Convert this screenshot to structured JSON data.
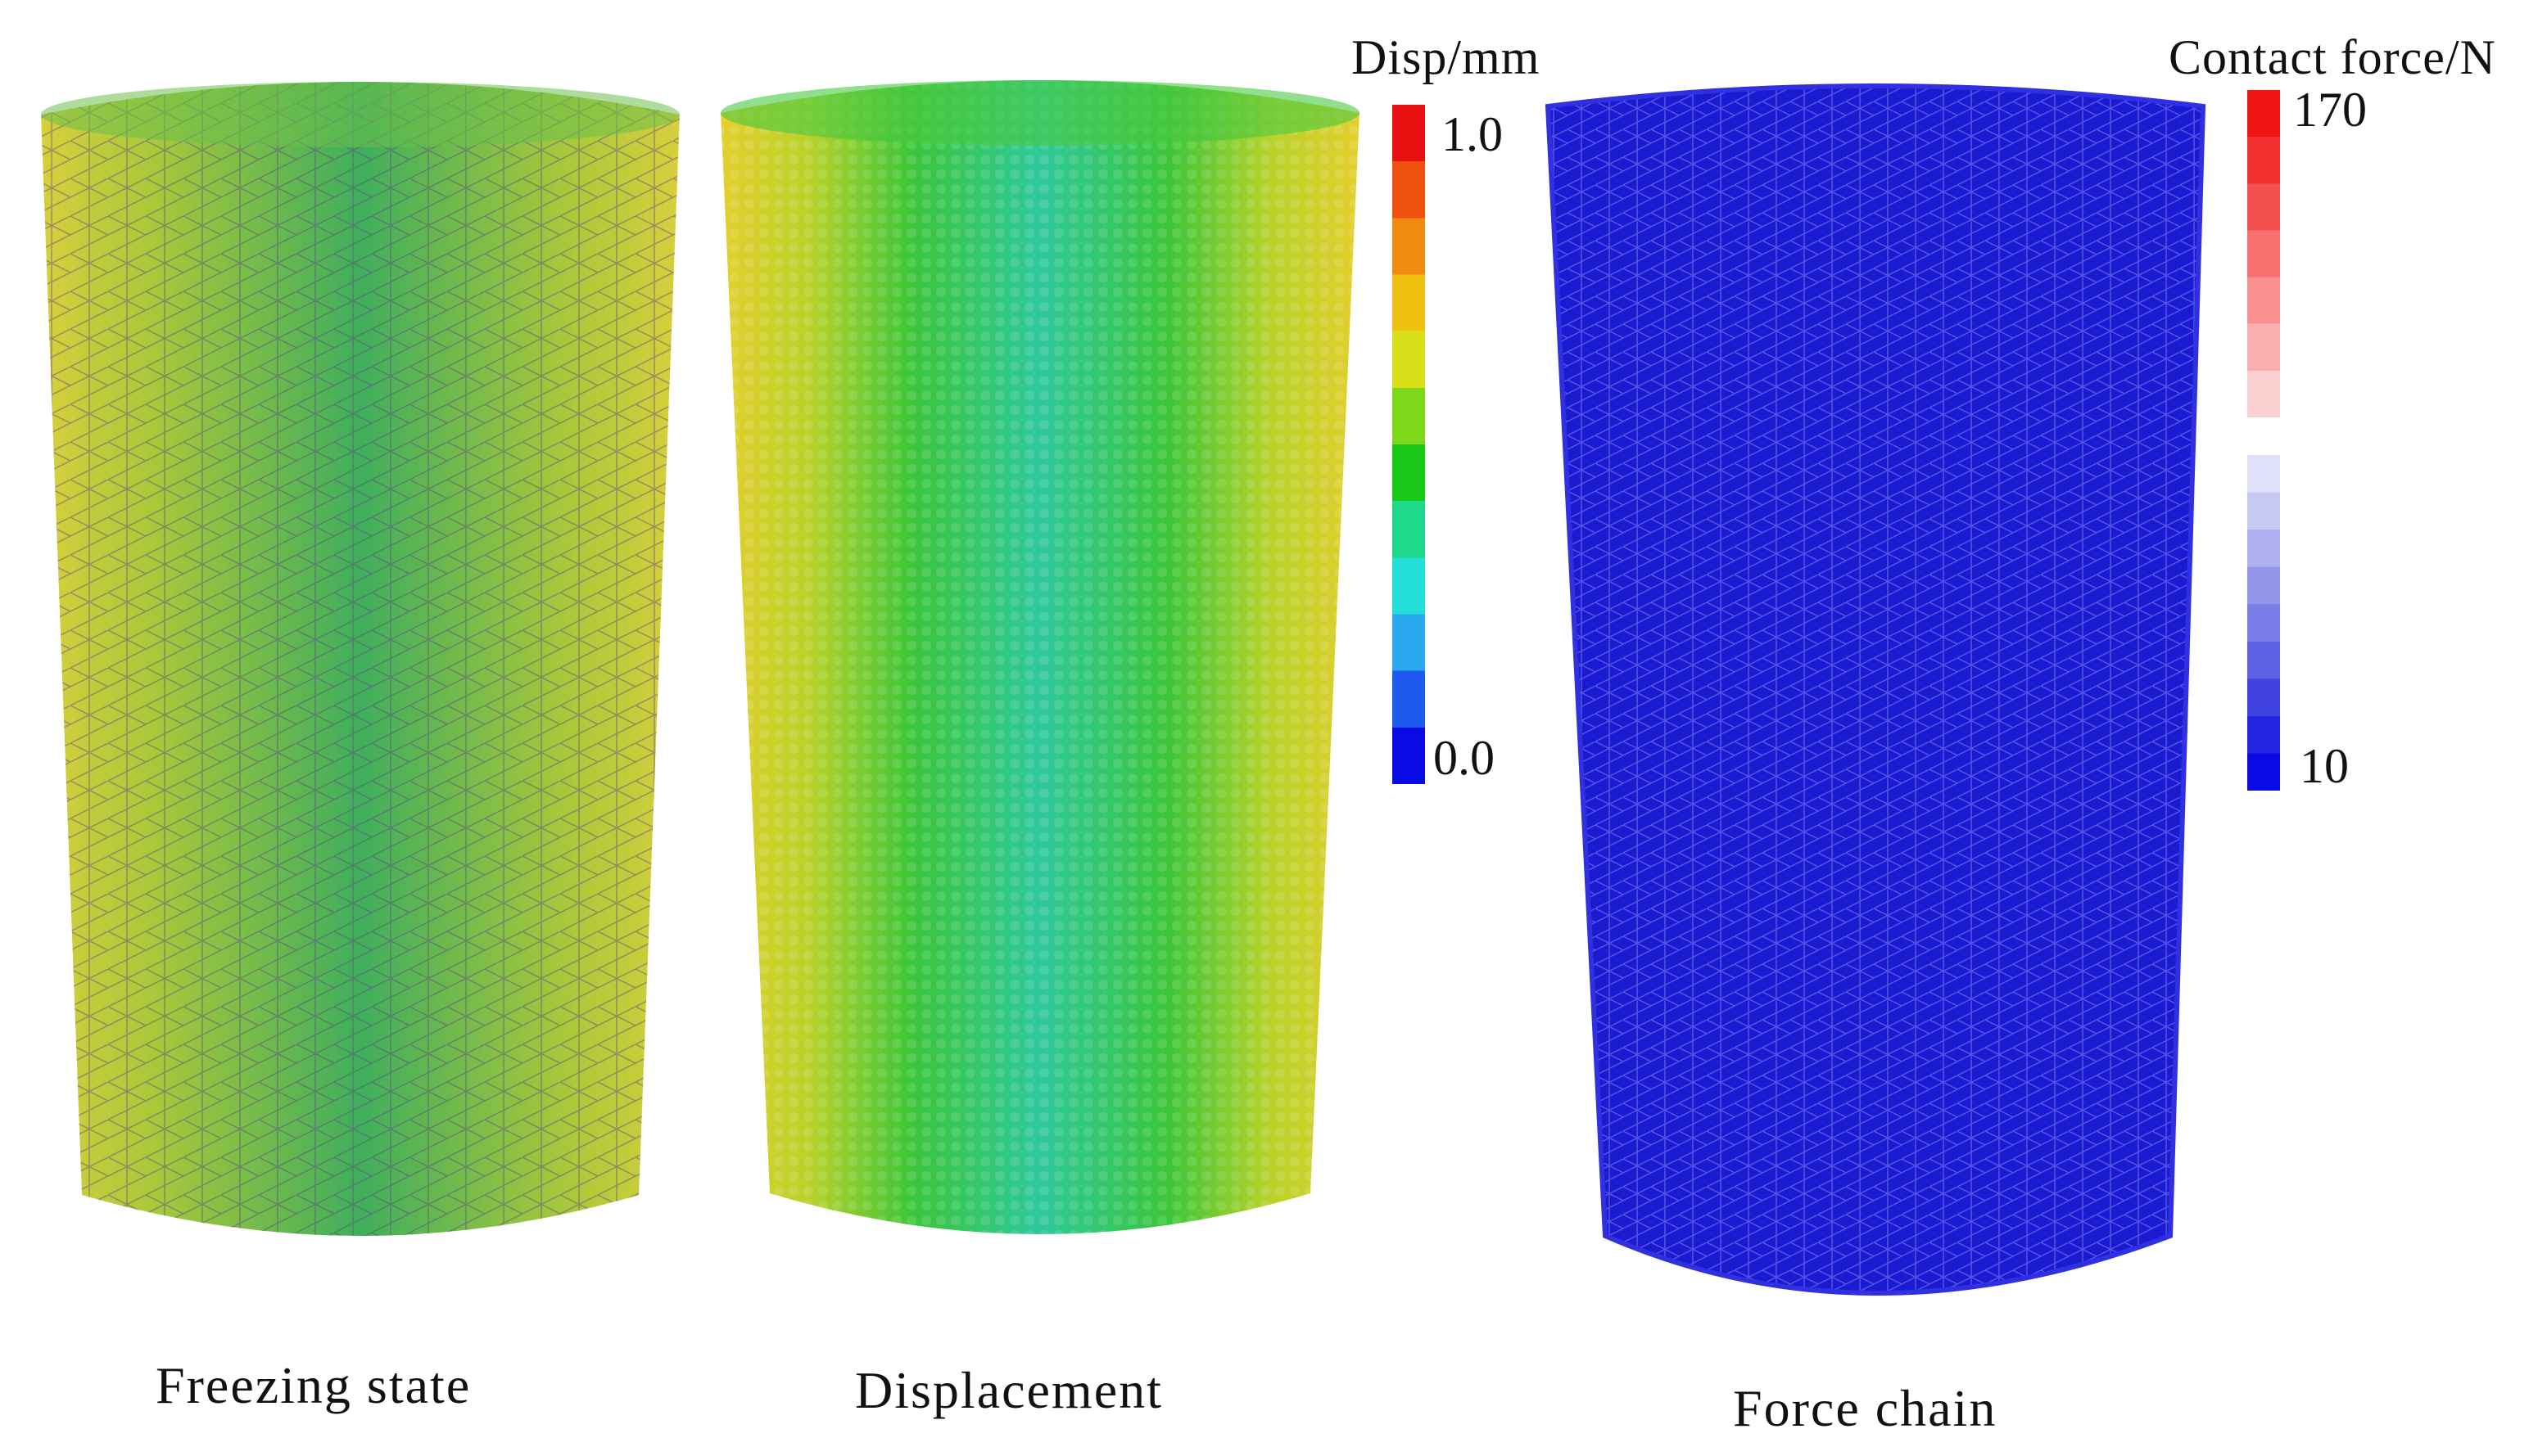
{
  "panels": [
    {
      "id": "freezing",
      "caption": "Freezing state"
    },
    {
      "id": "displacement",
      "caption": "Displacement"
    },
    {
      "id": "force-chain",
      "caption": "Force chain"
    }
  ],
  "disp_legend": {
    "title": "Disp/mm",
    "max_label": "1.0",
    "min_label": "0.0",
    "colors": [
      "#0a0ae6",
      "#1e5af0",
      "#2aa8f0",
      "#22e0d8",
      "#20d88a",
      "#18c818",
      "#7ed81a",
      "#d8e01a",
      "#f0c010",
      "#f08a10",
      "#f0500e",
      "#e81010"
    ]
  },
  "force_legend": {
    "title": "Contact force/N",
    "max_label": "170",
    "min_label": "10",
    "colors_top": [
      "#f01414",
      "#f23030",
      "#f45050",
      "#f67070",
      "#f89090",
      "#fab0b0",
      "#fcd0d0"
    ],
    "colors_bottom": [
      "#e0e0fa",
      "#c8c8f4",
      "#aeb0f0",
      "#9496ec",
      "#7a7ce8",
      "#5e60e4",
      "#4042e2",
      "#2224e0",
      "#0a0ae6"
    ]
  }
}
